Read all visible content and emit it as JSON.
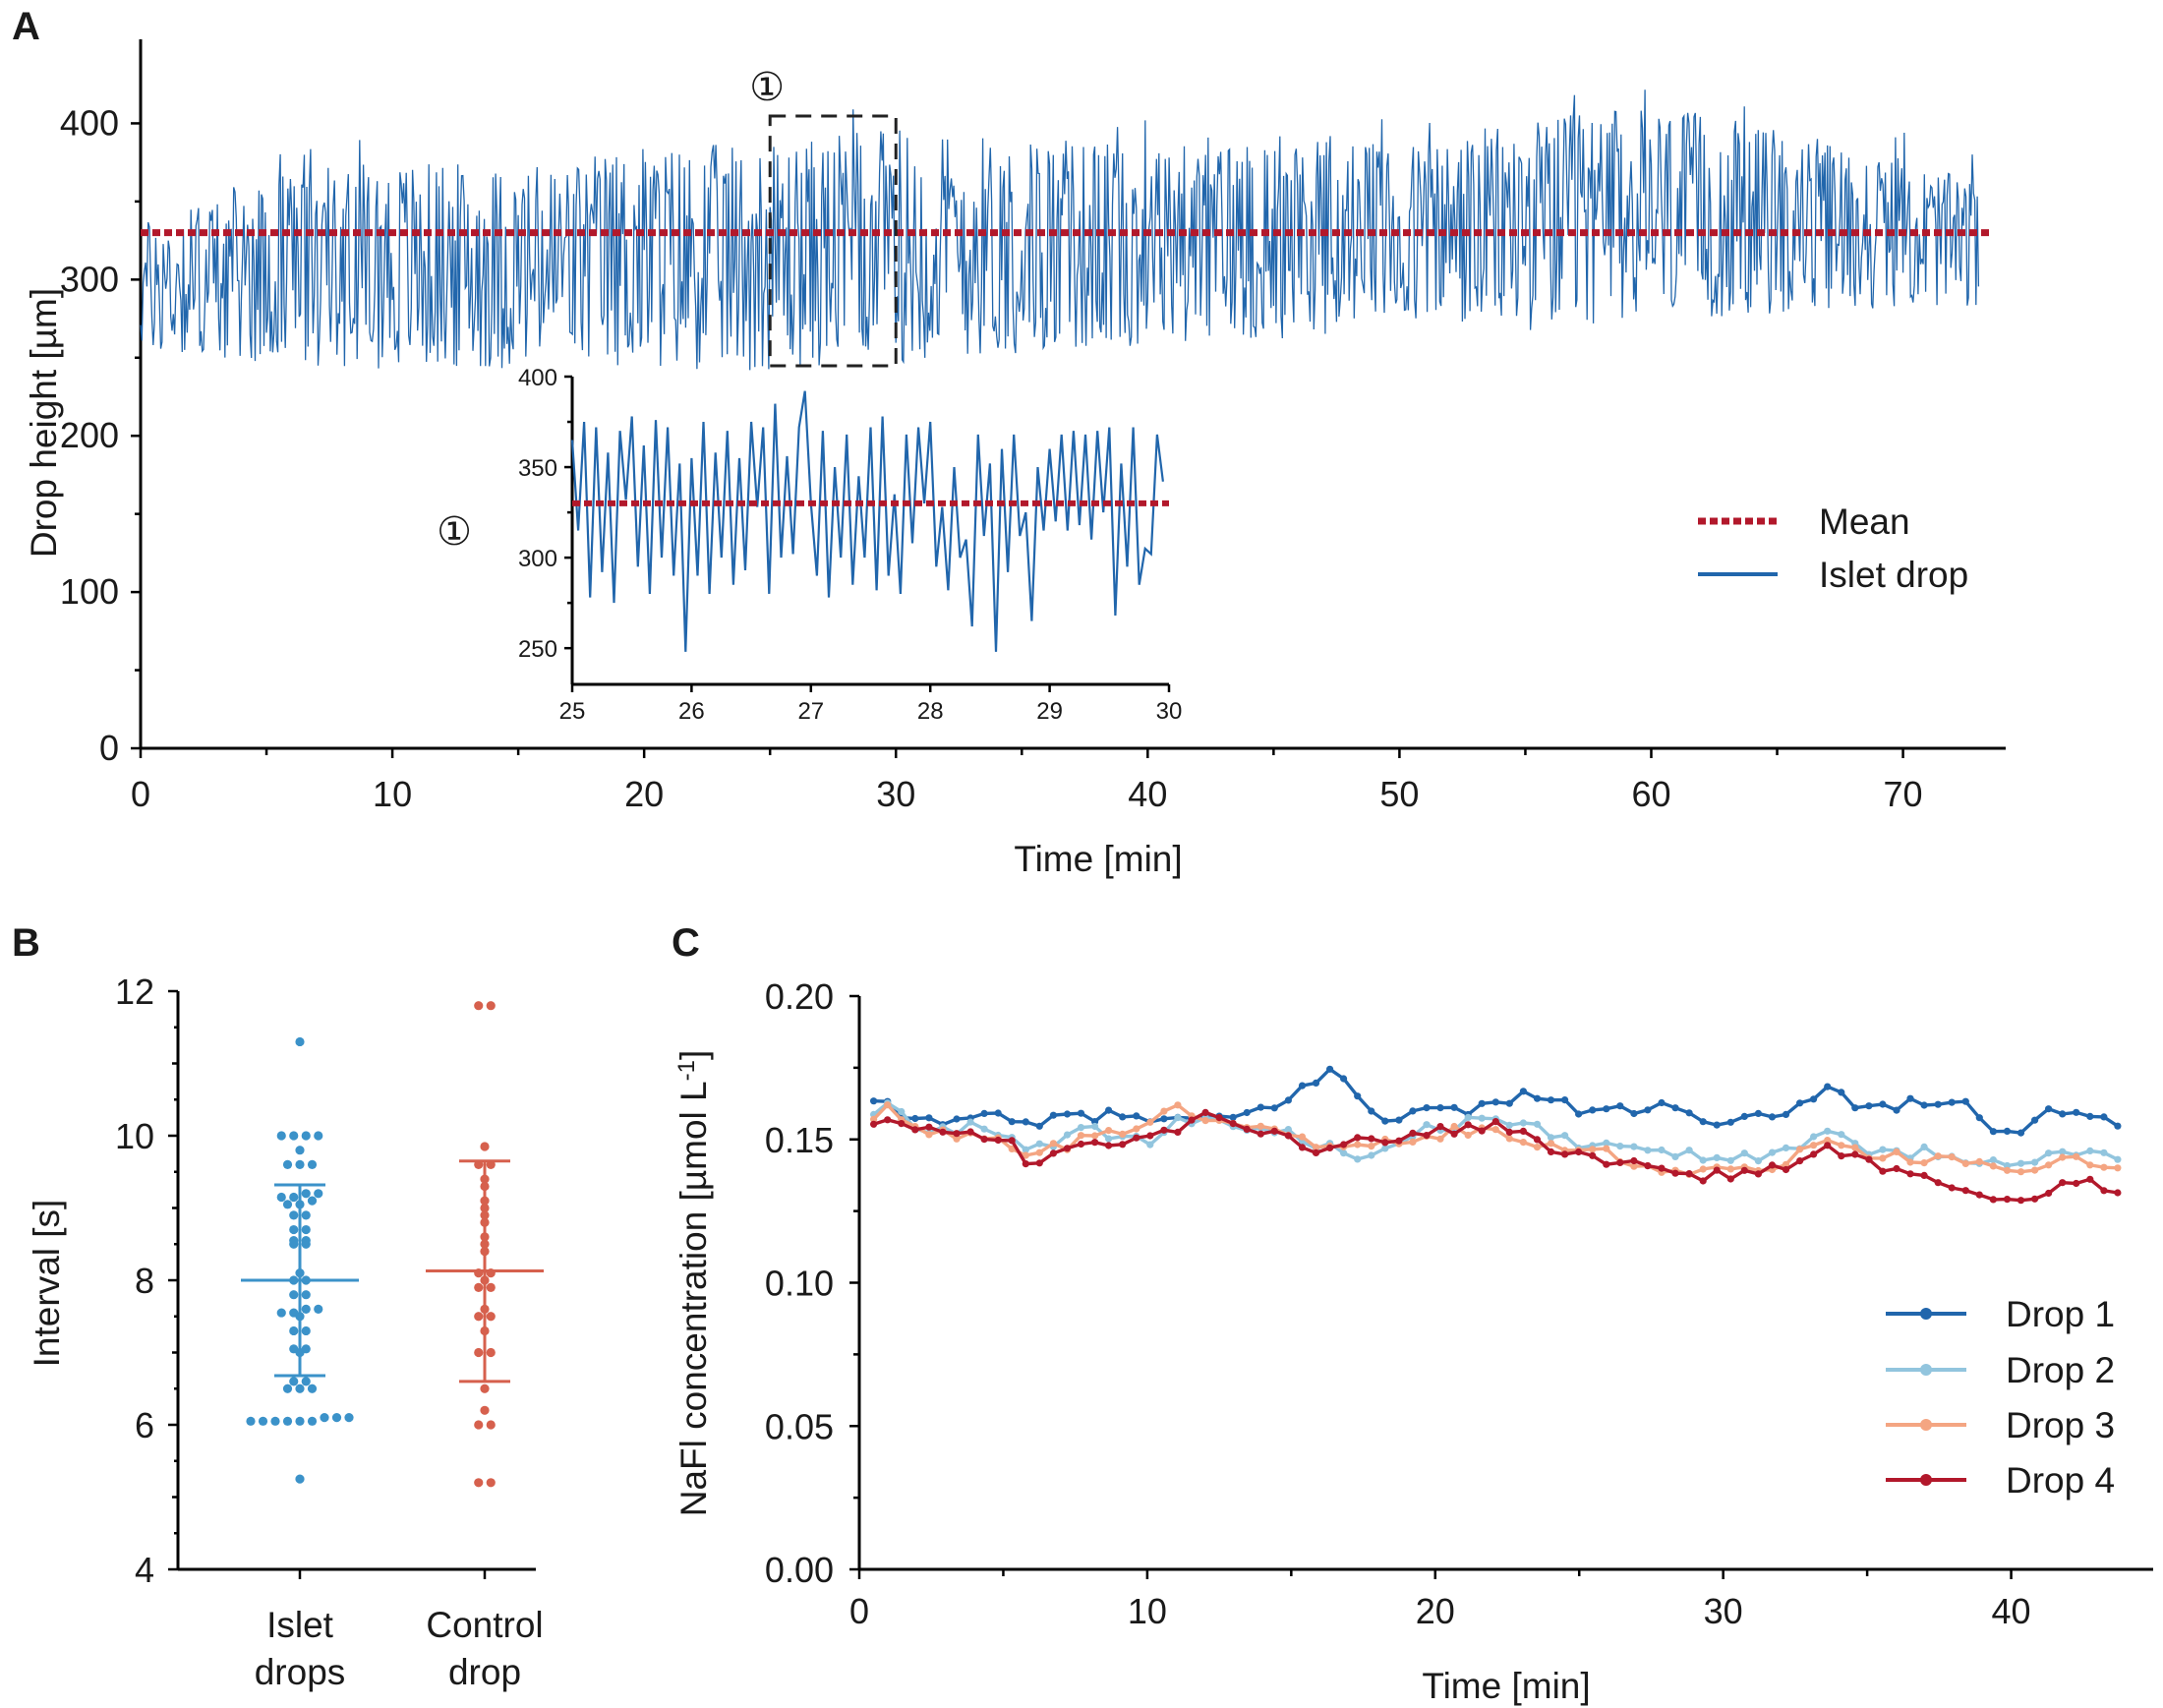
{
  "panel_labels": {
    "a": "A",
    "b": "B",
    "c": "C"
  },
  "colors": {
    "islet": "#2166ac",
    "mean": "#b2182b",
    "drop1": "#2166ac",
    "drop2": "#92c5de",
    "drop3": "#f4a582",
    "drop4": "#b2182b",
    "islet_points": "#3b92c9",
    "control_points": "#d6604d"
  },
  "chart_data": [
    {
      "id": "A",
      "type": "line",
      "xlabel": "Time [min]",
      "ylabel": "Drop height [µm]",
      "xlim": [
        0,
        74
      ],
      "ylim": [
        0,
        450
      ],
      "xticks": [
        0,
        10,
        20,
        30,
        40,
        50,
        60,
        70
      ],
      "yticks": [
        0,
        100,
        200,
        300,
        400
      ],
      "series": [
        {
          "name": "Mean",
          "style": "dotted",
          "value": 330
        },
        {
          "name": "Islet drop",
          "style": "solid",
          "envelope_by_minute": [
            [
              0,
              260,
              345
            ],
            [
              5,
              255,
              375
            ],
            [
              10,
              250,
              385
            ],
            [
              15,
              250,
              380
            ],
            [
              20,
              250,
              395
            ],
            [
              25,
              250,
              395
            ],
            [
              30,
              255,
              405
            ],
            [
              35,
              260,
              400
            ],
            [
              40,
              265,
              395
            ],
            [
              45,
              270,
              405
            ],
            [
              50,
              275,
              395
            ],
            [
              55,
              275,
              410
            ],
            [
              60,
              280,
              420
            ],
            [
              65,
              285,
              405
            ],
            [
              70,
              290,
              385
            ],
            [
              73,
              290,
              370
            ]
          ]
        }
      ],
      "zoom_marker": "①",
      "zoom_box": {
        "x_range": [
          25,
          30
        ],
        "y_range": [
          245,
          400
        ]
      },
      "inset": {
        "marker": "①",
        "xlim": [
          25,
          30
        ],
        "ylim": [
          230,
          400
        ],
        "xticks": [
          25,
          26,
          27,
          28,
          29,
          30
        ],
        "yticks": [
          250,
          300,
          350,
          400
        ],
        "mean": 330,
        "x": [
          25.0,
          25.05,
          25.1,
          25.15,
          25.2,
          25.25,
          25.3,
          25.35,
          25.4,
          25.45,
          25.5,
          25.55,
          25.6,
          25.65,
          25.7,
          25.75,
          25.8,
          25.85,
          25.9,
          25.95,
          26.0,
          26.05,
          26.1,
          26.15,
          26.2,
          26.25,
          26.3,
          26.35,
          26.4,
          26.45,
          26.5,
          26.55,
          26.6,
          26.65,
          26.7,
          26.75,
          26.8,
          26.85,
          26.9,
          26.95,
          27.0,
          27.05,
          27.1,
          27.15,
          27.2,
          27.25,
          27.3,
          27.35,
          27.4,
          27.45,
          27.5,
          27.55,
          27.6,
          27.65,
          27.7,
          27.75,
          27.8,
          27.85,
          27.9,
          27.95,
          28.0,
          28.05,
          28.1,
          28.15,
          28.2,
          28.25,
          28.3,
          28.35,
          28.4,
          28.45,
          28.5,
          28.55,
          28.6,
          28.65,
          28.7,
          28.75,
          28.8,
          28.85,
          28.9,
          28.95,
          29.0,
          29.05,
          29.1,
          29.15,
          29.2,
          29.25,
          29.3,
          29.35,
          29.4,
          29.45,
          29.5,
          29.55,
          29.6,
          29.65,
          29.7,
          29.75,
          29.8,
          29.85,
          29.9,
          29.95
        ],
        "values": [
          365,
          315,
          375,
          278,
          372,
          292,
          358,
          275,
          370,
          332,
          378,
          295,
          362,
          280,
          376,
          300,
          372,
          290,
          352,
          248,
          355,
          290,
          375,
          280,
          358,
          300,
          370,
          285,
          355,
          293,
          375,
          328,
          372,
          280,
          385,
          300,
          356,
          302,
          372,
          392,
          330,
          290,
          370,
          278,
          350,
          300,
          368,
          285,
          345,
          300,
          372,
          282,
          378,
          290,
          335,
          280,
          368,
          308,
          372,
          330,
          375,
          295,
          328,
          282,
          350,
          300,
          310,
          262,
          368,
          312,
          352,
          248,
          360,
          292,
          368,
          312,
          325,
          265,
          350,
          315,
          360,
          320,
          368,
          315,
          370,
          318,
          368,
          310,
          370,
          325,
          372,
          268,
          352,
          295,
          372,
          285,
          305,
          302,
          368,
          342
        ]
      },
      "legend": [
        {
          "label": "Mean",
          "style": "dotted"
        },
        {
          "label": "Islet drop",
          "style": "solid"
        }
      ]
    },
    {
      "id": "B",
      "type": "scatter",
      "ylabel": "Interval [s]",
      "ylim": [
        4,
        12
      ],
      "yticks": [
        4,
        6,
        8,
        10,
        12
      ],
      "categories": [
        "Islet drops",
        "Control drop"
      ],
      "category_lines": [
        [
          "Islet",
          "drops"
        ],
        [
          "Control",
          "drop"
        ]
      ],
      "groups": [
        {
          "name": "Islet drops",
          "mean": 8.0,
          "sd_low": 6.68,
          "sd_high": 9.32,
          "points": [
            5.25,
            6.05,
            6.05,
            6.05,
            6.05,
            6.05,
            6.05,
            6.1,
            6.1,
            6.1,
            6.5,
            6.5,
            6.5,
            6.6,
            6.6,
            7.0,
            7.05,
            7.05,
            7.3,
            7.3,
            7.5,
            7.55,
            7.55,
            7.6,
            7.6,
            7.8,
            7.8,
            8.0,
            8.0,
            8.1,
            8.5,
            8.5,
            8.55,
            8.55,
            8.7,
            8.7,
            8.9,
            8.9,
            9.05,
            9.05,
            9.1,
            9.15,
            9.15,
            9.2,
            9.2,
            9.6,
            9.6,
            9.6,
            9.8,
            10.0,
            10.0,
            10.0,
            10.0,
            11.3
          ]
        },
        {
          "name": "Control drop",
          "mean": 8.13,
          "sd_low": 6.6,
          "sd_high": 9.65,
          "points": [
            5.2,
            5.2,
            6.0,
            6.0,
            6.2,
            6.5,
            7.0,
            7.0,
            7.3,
            7.5,
            7.5,
            7.6,
            7.9,
            7.9,
            8.0,
            8.1,
            8.1,
            8.4,
            8.5,
            8.6,
            8.8,
            8.9,
            9.0,
            9.1,
            9.3,
            9.4,
            9.6,
            9.6,
            9.85,
            11.8,
            11.8
          ]
        }
      ]
    },
    {
      "id": "C",
      "type": "line",
      "xlabel": "Time [min]",
      "ylabel": "NaFl concentration [µmol L",
      "ylabel_sup": "-1",
      "ylabel_end": "]",
      "xlim": [
        0,
        45
      ],
      "ylim": [
        0.0,
        0.2
      ],
      "xticks": [
        0,
        10,
        20,
        30,
        40
      ],
      "yticks": [
        0.0,
        0.05,
        0.1,
        0.15,
        0.2
      ],
      "ytick_labels": [
        "0.00",
        "0.05",
        "0.10",
        "0.15",
        "0.20"
      ],
      "series": [
        {
          "name": "Drop 1",
          "anchors": [
            [
              0.5,
              0.162
            ],
            [
              1,
              0.161
            ],
            [
              2,
              0.156
            ],
            [
              4,
              0.159
            ],
            [
              6,
              0.154
            ],
            [
              7.5,
              0.159
            ],
            [
              10,
              0.157
            ],
            [
              12,
              0.156
            ],
            [
              14,
              0.16
            ],
            [
              16.5,
              0.174
            ],
            [
              18,
              0.158
            ],
            [
              20,
              0.16
            ],
            [
              22,
              0.161
            ],
            [
              23,
              0.167
            ],
            [
              25,
              0.16
            ],
            [
              28,
              0.161
            ],
            [
              30,
              0.154
            ],
            [
              32,
              0.159
            ],
            [
              33.5,
              0.168
            ],
            [
              35,
              0.161
            ],
            [
              38,
              0.164
            ],
            [
              40,
              0.15
            ],
            [
              41,
              0.16
            ],
            [
              43,
              0.159
            ],
            [
              44,
              0.155
            ]
          ]
        },
        {
          "name": "Drop 2",
          "anchors": [
            [
              0.5,
              0.158
            ],
            [
              1,
              0.163
            ],
            [
              2,
              0.152
            ],
            [
              4,
              0.154
            ],
            [
              6,
              0.147
            ],
            [
              8,
              0.153
            ],
            [
              10,
              0.149
            ],
            [
              11,
              0.158
            ],
            [
              13,
              0.155
            ],
            [
              15,
              0.152
            ],
            [
              17.5,
              0.142
            ],
            [
              19,
              0.152
            ],
            [
              21,
              0.156
            ],
            [
              23,
              0.156
            ],
            [
              25,
              0.148
            ],
            [
              28,
              0.146
            ],
            [
              30,
              0.143
            ],
            [
              32,
              0.145
            ],
            [
              33.5,
              0.152
            ],
            [
              35,
              0.146
            ],
            [
              38,
              0.145
            ],
            [
              40,
              0.14
            ],
            [
              42,
              0.147
            ],
            [
              44,
              0.143
            ]
          ]
        },
        {
          "name": "Drop 3",
          "anchors": [
            [
              0.5,
              0.157
            ],
            [
              1,
              0.16
            ],
            [
              2,
              0.153
            ],
            [
              4,
              0.152
            ],
            [
              6,
              0.145
            ],
            [
              8,
              0.15
            ],
            [
              10,
              0.155
            ],
            [
              11,
              0.16
            ],
            [
              13,
              0.155
            ],
            [
              15,
              0.15
            ],
            [
              18,
              0.148
            ],
            [
              20,
              0.152
            ],
            [
              22,
              0.154
            ],
            [
              24,
              0.148
            ],
            [
              26,
              0.145
            ],
            [
              28,
              0.14
            ],
            [
              30,
              0.14
            ],
            [
              32,
              0.142
            ],
            [
              33.5,
              0.15
            ],
            [
              35,
              0.144
            ],
            [
              38,
              0.143
            ],
            [
              40,
              0.137
            ],
            [
              42,
              0.143
            ],
            [
              44,
              0.141
            ]
          ]
        },
        {
          "name": "Drop 4",
          "anchors": [
            [
              0.5,
              0.156
            ],
            [
              1,
              0.157
            ],
            [
              2,
              0.155
            ],
            [
              4,
              0.151
            ],
            [
              5.5,
              0.148
            ],
            [
              6,
              0.134
            ],
            [
              6.5,
              0.146
            ],
            [
              8,
              0.148
            ],
            [
              10,
              0.15
            ],
            [
              12,
              0.158
            ],
            [
              14,
              0.153
            ],
            [
              16,
              0.147
            ],
            [
              18,
              0.15
            ],
            [
              20,
              0.152
            ],
            [
              22,
              0.155
            ],
            [
              24,
              0.147
            ],
            [
              26,
              0.143
            ],
            [
              28,
              0.138
            ],
            [
              30,
              0.137
            ],
            [
              32,
              0.14
            ],
            [
              33.5,
              0.148
            ],
            [
              35,
              0.142
            ],
            [
              38,
              0.134
            ],
            [
              40,
              0.128
            ],
            [
              42,
              0.136
            ],
            [
              44,
              0.131
            ]
          ]
        }
      ],
      "legend": [
        "Drop 1",
        "Drop 2",
        "Drop 3",
        "Drop 4"
      ]
    }
  ]
}
